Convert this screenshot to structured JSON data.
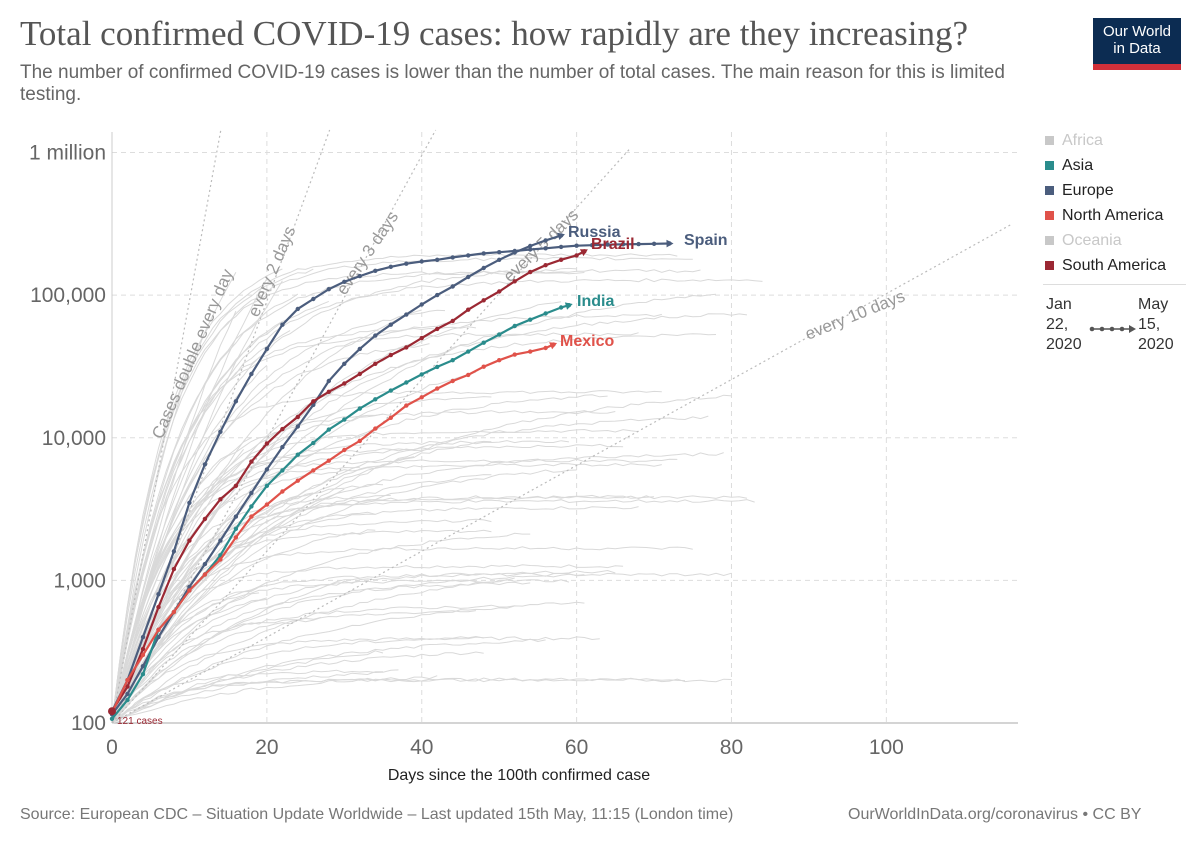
{
  "header": {
    "title": "Total confirmed COVID-19 cases: how rapidly are they increasing?",
    "subtitle": "The number of confirmed COVID-19 cases is lower than the number of total cases. The main reason for this is limited testing.",
    "logo_line1": "Our World",
    "logo_line2": "in Data"
  },
  "legend": {
    "items": [
      {
        "label": "Africa",
        "color": "#c8c8c8",
        "dimmed": true
      },
      {
        "label": "Asia",
        "color": "#2a8c8c",
        "dimmed": false
      },
      {
        "label": "Europe",
        "color": "#4b5d7d",
        "dimmed": false
      },
      {
        "label": "North America",
        "color": "#e0524a",
        "dimmed": false
      },
      {
        "label": "Oceania",
        "color": "#c8c8c8",
        "dimmed": true
      },
      {
        "label": "South America",
        "color": "#9b2833",
        "dimmed": false
      }
    ],
    "timeline_start": [
      "Jan",
      "22,",
      "2020"
    ],
    "timeline_end": [
      "May",
      "15,",
      "2020"
    ]
  },
  "footer": {
    "source": "Source: European CDC – Situation Update Worldwide – Last updated 15th May, 11:15 (London time)",
    "credit": "OurWorldInData.org/coronavirus • CC BY"
  },
  "chart_data": {
    "type": "line",
    "scale_y": "log",
    "xlabel": "Days since the 100th confirmed case",
    "ylabel": "",
    "xlim": [
      0,
      117
    ],
    "ylim": [
      100,
      1700000
    ],
    "grid": true,
    "x_ticks": [
      {
        "value": 0,
        "label": "0"
      },
      {
        "value": 20,
        "label": "20"
      },
      {
        "value": 40,
        "label": "40"
      },
      {
        "value": 60,
        "label": "60"
      },
      {
        "value": 80,
        "label": "80"
      },
      {
        "value": 100,
        "label": "100"
      }
    ],
    "y_ticks": [
      {
        "value": 100,
        "label": "100"
      },
      {
        "value": 1000,
        "label": "1,000"
      },
      {
        "value": 10000,
        "label": "10,000"
      },
      {
        "value": 100000,
        "label": "100,000"
      },
      {
        "value": 1000000,
        "label": "1 million"
      }
    ],
    "start_annotation": "121 cases",
    "doubling_lines": [
      {
        "label": "Cases double every day",
        "days": 1
      },
      {
        "label": "every 2 days",
        "days": 2
      },
      {
        "label": "every 3 days",
        "days": 3
      },
      {
        "label": "every 5 days",
        "days": 5
      },
      {
        "label": "every 10 days",
        "days": 10
      }
    ],
    "series": [
      {
        "name": "Spain",
        "color": "#4b5d7d",
        "points": [
          [
            0,
            121
          ],
          [
            2,
            200
          ],
          [
            4,
            400
          ],
          [
            6,
            800
          ],
          [
            8,
            1600
          ],
          [
            10,
            3500
          ],
          [
            12,
            6500
          ],
          [
            14,
            11000
          ],
          [
            16,
            18000
          ],
          [
            18,
            28000
          ],
          [
            20,
            42000
          ],
          [
            22,
            62000
          ],
          [
            24,
            80000
          ],
          [
            26,
            94000
          ],
          [
            28,
            110000
          ],
          [
            30,
            124000
          ],
          [
            32,
            136000
          ],
          [
            34,
            148000
          ],
          [
            36,
            158000
          ],
          [
            38,
            166000
          ],
          [
            40,
            172000
          ],
          [
            42,
            177000
          ],
          [
            44,
            184000
          ],
          [
            46,
            190000
          ],
          [
            48,
            196000
          ],
          [
            50,
            200000
          ],
          [
            52,
            204000
          ],
          [
            54,
            209000
          ],
          [
            56,
            213000
          ],
          [
            58,
            218000
          ],
          [
            60,
            222000
          ],
          [
            62,
            224000
          ],
          [
            64,
            226000
          ],
          [
            66,
            227000
          ],
          [
            68,
            228000
          ],
          [
            70,
            229000
          ],
          [
            72,
            230000
          ]
        ]
      },
      {
        "name": "Russia",
        "color": "#4b5d7d",
        "points": [
          [
            0,
            115
          ],
          [
            2,
            160
          ],
          [
            4,
            250
          ],
          [
            6,
            400
          ],
          [
            8,
            600
          ],
          [
            10,
            900
          ],
          [
            12,
            1300
          ],
          [
            14,
            1900
          ],
          [
            16,
            2800
          ],
          [
            18,
            4100
          ],
          [
            20,
            6000
          ],
          [
            22,
            8600
          ],
          [
            24,
            12000
          ],
          [
            26,
            17000
          ],
          [
            28,
            25000
          ],
          [
            30,
            33000
          ],
          [
            32,
            42000
          ],
          [
            34,
            52000
          ],
          [
            36,
            62000
          ],
          [
            38,
            73000
          ],
          [
            40,
            86000
          ],
          [
            42,
            100000
          ],
          [
            44,
            115000
          ],
          [
            46,
            134000
          ],
          [
            48,
            155000
          ],
          [
            50,
            177000
          ],
          [
            52,
            199000
          ],
          [
            54,
            221000
          ],
          [
            56,
            242000
          ],
          [
            58,
            262000
          ]
        ]
      },
      {
        "name": "Brazil",
        "color": "#9b2833",
        "points": [
          [
            0,
            121
          ],
          [
            2,
            180
          ],
          [
            4,
            330
          ],
          [
            6,
            650
          ],
          [
            8,
            1200
          ],
          [
            10,
            1900
          ],
          [
            12,
            2700
          ],
          [
            14,
            3700
          ],
          [
            16,
            4600
          ],
          [
            18,
            6800
          ],
          [
            20,
            9100
          ],
          [
            22,
            11500
          ],
          [
            24,
            14000
          ],
          [
            26,
            18000
          ],
          [
            28,
            21000
          ],
          [
            30,
            24000
          ],
          [
            32,
            28000
          ],
          [
            34,
            33000
          ],
          [
            36,
            38000
          ],
          [
            38,
            43000
          ],
          [
            40,
            50000
          ],
          [
            42,
            58000
          ],
          [
            44,
            66000
          ],
          [
            46,
            79000
          ],
          [
            48,
            92000
          ],
          [
            50,
            106000
          ],
          [
            52,
            125000
          ],
          [
            54,
            145000
          ],
          [
            56,
            162000
          ],
          [
            58,
            177000
          ],
          [
            60,
            190000
          ],
          [
            61,
            203000
          ]
        ]
      },
      {
        "name": "India",
        "color": "#2a8c8c",
        "points": [
          [
            0,
            107
          ],
          [
            2,
            145
          ],
          [
            4,
            220
          ],
          [
            6,
            450
          ],
          [
            8,
            600
          ],
          [
            10,
            850
          ],
          [
            12,
            1100
          ],
          [
            14,
            1500
          ],
          [
            16,
            2300
          ],
          [
            18,
            3300
          ],
          [
            20,
            4600
          ],
          [
            22,
            5900
          ],
          [
            24,
            7600
          ],
          [
            26,
            9200
          ],
          [
            28,
            11400
          ],
          [
            30,
            13400
          ],
          [
            32,
            16000
          ],
          [
            34,
            18600
          ],
          [
            36,
            21400
          ],
          [
            38,
            24400
          ],
          [
            40,
            27800
          ],
          [
            42,
            31400
          ],
          [
            44,
            35000
          ],
          [
            46,
            40200
          ],
          [
            48,
            46400
          ],
          [
            50,
            52900
          ],
          [
            52,
            60700
          ],
          [
            54,
            67200
          ],
          [
            56,
            74300
          ],
          [
            58,
            81900
          ],
          [
            59,
            85000
          ]
        ]
      },
      {
        "name": "Mexico",
        "color": "#e0524a",
        "points": [
          [
            0,
            118
          ],
          [
            2,
            200
          ],
          [
            4,
            300
          ],
          [
            6,
            450
          ],
          [
            8,
            600
          ],
          [
            10,
            850
          ],
          [
            12,
            1100
          ],
          [
            14,
            1400
          ],
          [
            16,
            2000
          ],
          [
            18,
            2800
          ],
          [
            20,
            3400
          ],
          [
            22,
            4200
          ],
          [
            24,
            5000
          ],
          [
            26,
            5900
          ],
          [
            28,
            6900
          ],
          [
            30,
            8200
          ],
          [
            32,
            9500
          ],
          [
            34,
            11600
          ],
          [
            36,
            13800
          ],
          [
            38,
            16800
          ],
          [
            40,
            19200
          ],
          [
            42,
            22100
          ],
          [
            44,
            25000
          ],
          [
            46,
            27600
          ],
          [
            48,
            31500
          ],
          [
            50,
            35000
          ],
          [
            52,
            38300
          ],
          [
            54,
            40200
          ],
          [
            56,
            42600
          ],
          [
            57,
            45000
          ]
        ]
      }
    ],
    "series_labels": [
      {
        "name": "Russia",
        "text": "Russia"
      },
      {
        "name": "Brazil",
        "text": "Brazil"
      },
      {
        "name": "Spain",
        "text": "Spain"
      },
      {
        "name": "India",
        "text": "India"
      },
      {
        "name": "Mexico",
        "text": "Mexico"
      }
    ]
  }
}
